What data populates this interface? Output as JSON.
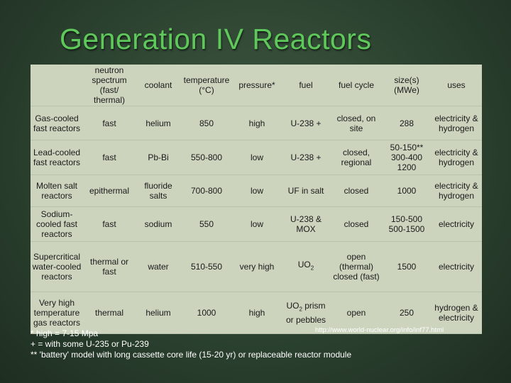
{
  "title": "Generation IV Reactors",
  "table": {
    "headers": [
      "",
      "neutron spectrum (fast/ thermal)",
      "coolant",
      "temperature (°C)",
      "pressure*",
      "fuel",
      "fuel cycle",
      "size(s) (MWe)",
      "uses"
    ],
    "rows": [
      [
        "Gas-cooled fast reactors",
        "fast",
        "helium",
        "850",
        "high",
        "U-238 +",
        "closed, on site",
        "288",
        "electricity & hydrogen"
      ],
      [
        "Lead-cooled fast reactors",
        "fast",
        "Pb-Bi",
        "550-800",
        "low",
        "U-238 +",
        "closed, regional",
        "50-150** 300-400 1200",
        "electricity & hydrogen"
      ],
      [
        "Molten salt reactors",
        "epithermal",
        "fluoride salts",
        "700-800",
        "low",
        "UF in salt",
        "closed",
        "1000",
        "electricity & hydrogen"
      ],
      [
        "Sodium-cooled fast reactors",
        "fast",
        "sodium",
        "550",
        "low",
        "U-238 & MOX",
        "closed",
        "150-500 500-1500",
        "electricity"
      ],
      [
        "Supercritical water-cooled reactors",
        "thermal or fast",
        "water",
        "510-550",
        "very high",
        "UO2",
        "open (thermal) closed (fast)",
        "1500",
        "electricity"
      ],
      [
        "Very high temperature gas reactors",
        "thermal",
        "helium",
        "1000",
        "high",
        "UO2 prism or pebbles",
        "open",
        "250",
        "hydrogen & electricity"
      ]
    ]
  },
  "source_url": "http://www.world-nuclear.org/info/inf77.html",
  "footnotes": [
    "* high = 7-15 Mpa",
    "+ = with some U-235 or Pu-239",
    "** 'battery' model with long cassette core life (15-20 yr) or replaceable reactor module"
  ],
  "colors": {
    "title": "#5fc85a",
    "table_bg": "#ccd4be",
    "background": "#2c4230"
  }
}
